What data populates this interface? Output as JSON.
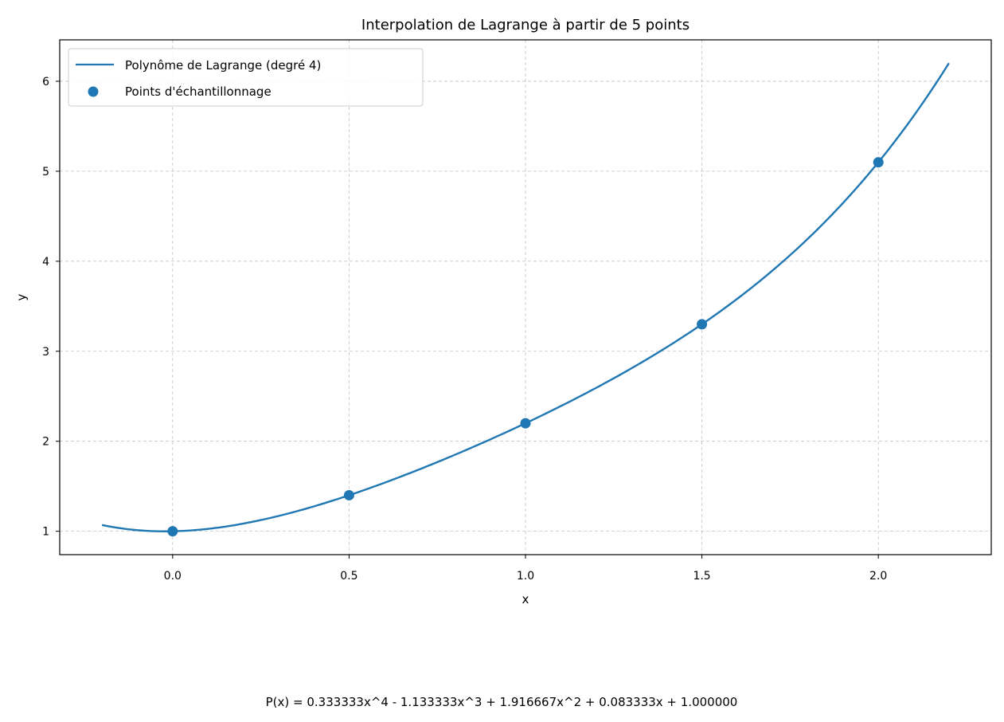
{
  "chart_data": {
    "type": "line",
    "title": "Interpolation de Lagrange à partir de 5 points",
    "xlabel": "x",
    "ylabel": "y",
    "xlim": [
      -0.32,
      2.32
    ],
    "ylim": [
      0.74,
      6.46
    ],
    "xticks": [
      0.0,
      0.5,
      1.0,
      1.5,
      2.0
    ],
    "xtick_labels": [
      "0.0",
      "0.5",
      "1.0",
      "1.5",
      "2.0"
    ],
    "yticks": [
      1,
      2,
      3,
      4,
      5,
      6
    ],
    "ytick_labels": [
      "1",
      "2",
      "3",
      "4",
      "5",
      "6"
    ],
    "grid": true,
    "legend_position": "top-left",
    "series": [
      {
        "name": "Polynôme de Lagrange (degré 4)",
        "kind": "line",
        "color": "#1f77b4",
        "x_range": [
          -0.2,
          2.2
        ],
        "coefficients": [
          0.333333,
          -1.133333,
          1.916667,
          0.083333,
          1.0
        ]
      },
      {
        "name": "Points d'échantillonnage",
        "kind": "scatter",
        "color": "#1f77b4",
        "x": [
          0.0,
          0.5,
          1.0,
          1.5,
          2.0
        ],
        "y": [
          1.0,
          1.4,
          2.2,
          3.3,
          5.1
        ]
      }
    ],
    "annotation": "P(x) = 0.333333x^4 - 1.133333x^3 + 1.916667x^2 + 0.083333x + 1.000000"
  }
}
